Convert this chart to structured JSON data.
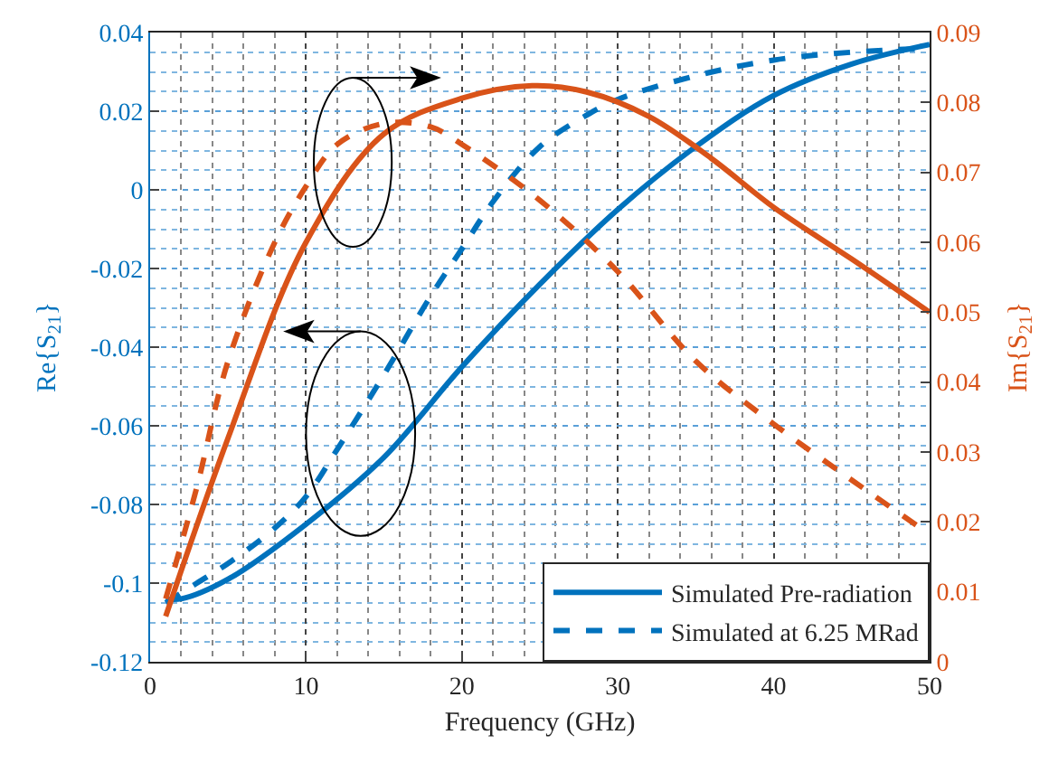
{
  "chart_data": {
    "type": "line",
    "xlabel": "Frequency (GHz)",
    "ylabel": "Re{S$_{21}$}",
    "y2label": "Im{S$_{21}$}",
    "xlim": [
      0,
      50
    ],
    "xticks": [
      0,
      10,
      20,
      30,
      40,
      50
    ],
    "ylim": [
      -0.12,
      0.04
    ],
    "yticks": [
      -0.12,
      -0.1,
      -0.08,
      -0.06,
      -0.04,
      -0.02,
      0,
      0.02,
      0.04
    ],
    "y2lim": [
      0,
      0.09
    ],
    "y2ticks": [
      0,
      0.01,
      0.02,
      0.03,
      0.04,
      0.05,
      0.06,
      0.07,
      0.08,
      0.09
    ],
    "grid": true,
    "legend": "bottom right",
    "marker": "none",
    "series": [
      {
        "name": "Simulated Pre-radiation",
        "color": "#0072bd",
        "line_style": "solid",
        "x": [
          1,
          2,
          5,
          10,
          15,
          20,
          25,
          30,
          35,
          40,
          45,
          50
        ],
        "values": [
          -0.104,
          -0.104,
          -0.099,
          -0.085,
          -0.068,
          -0.045,
          -0.024,
          -0.005,
          0.011,
          0.024,
          0.032,
          0.037
        ]
      },
      {
        "name": "Simulated at 6.25 MRad",
        "color": "#0072bd",
        "line_style": "dashed",
        "x": [
          1,
          3,
          5,
          8,
          10,
          12,
          15,
          18,
          20,
          22,
          25,
          28,
          30,
          35,
          40,
          45,
          50
        ],
        "values": [
          -0.105,
          -0.1,
          -0.095,
          -0.086,
          -0.078,
          -0.066,
          -0.047,
          -0.027,
          -0.015,
          -0.003,
          0.011,
          0.019,
          0.023,
          0.029,
          0.033,
          0.035,
          0.036
        ]
      },
      {
        "color": "#d95319",
        "line_style": "solid",
        "axis": "y2",
        "x": [
          1,
          5,
          10,
          15,
          20,
          24.5,
          28,
          32,
          36,
          40,
          45,
          50
        ],
        "values": [
          0.0065,
          0.032,
          0.06,
          0.0755,
          0.0806,
          0.0824,
          0.0815,
          0.078,
          0.072,
          0.065,
          0.0576,
          0.05
        ]
      },
      {
        "color": "#d95319",
        "line_style": "dashed",
        "axis": "y2",
        "x": [
          1,
          3,
          5,
          8,
          10,
          12,
          15,
          18,
          20,
          25,
          30,
          35,
          40,
          45,
          49.5
        ],
        "values": [
          0.009,
          0.025,
          0.043,
          0.06,
          0.068,
          0.074,
          0.077,
          0.0765,
          0.074,
          0.066,
          0.0558,
          0.043,
          0.034,
          0.026,
          0.019
        ]
      }
    ]
  }
}
